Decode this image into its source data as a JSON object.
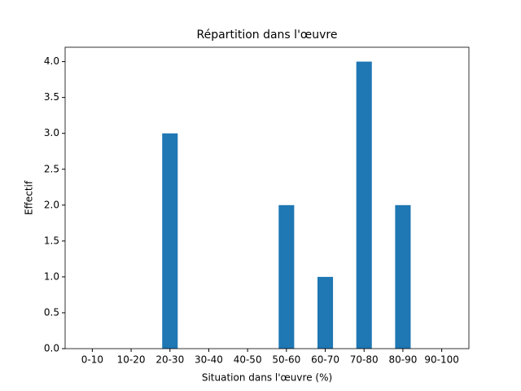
{
  "chart_data": {
    "type": "bar",
    "title": "Répartition dans l'œuvre",
    "xlabel": "Situation dans l'œuvre (%)",
    "ylabel": "Effectif",
    "categories": [
      "0-10",
      "10-20",
      "20-30",
      "30-40",
      "40-50",
      "50-60",
      "60-70",
      "70-80",
      "80-90",
      "90-100"
    ],
    "values": [
      0,
      0,
      3,
      0,
      0,
      2,
      1,
      4,
      2,
      0
    ],
    "color": "#1f77b4",
    "ylim": [
      0,
      4.2
    ],
    "yticks": [
      {
        "value": 0,
        "label": "0.0"
      },
      0.5,
      {
        "value": 1,
        "label": "1.0"
      },
      1.5,
      {
        "value": 2,
        "label": "2.0"
      },
      2.5,
      {
        "value": 3,
        "label": "3.0"
      },
      3.5,
      {
        "value": 4,
        "label": "4.0"
      }
    ],
    "grid": false
  }
}
